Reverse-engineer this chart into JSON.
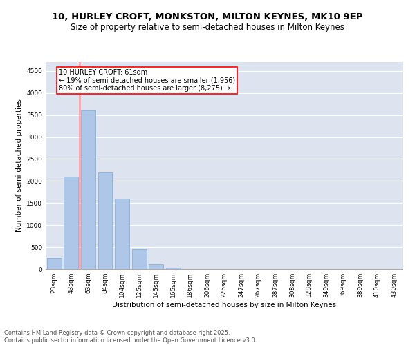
{
  "title_line1": "10, HURLEY CROFT, MONKSTON, MILTON KEYNES, MK10 9EP",
  "title_line2": "Size of property relative to semi-detached houses in Milton Keynes",
  "xlabel": "Distribution of semi-detached houses by size in Milton Keynes",
  "ylabel": "Number of semi-detached properties",
  "categories": [
    "23sqm",
    "43sqm",
    "63sqm",
    "84sqm",
    "104sqm",
    "125sqm",
    "145sqm",
    "165sqm",
    "186sqm",
    "206sqm",
    "226sqm",
    "247sqm",
    "267sqm",
    "287sqm",
    "308sqm",
    "328sqm",
    "349sqm",
    "369sqm",
    "389sqm",
    "410sqm",
    "430sqm"
  ],
  "values": [
    250,
    2100,
    3600,
    2200,
    1600,
    450,
    110,
    28,
    5,
    0,
    0,
    0,
    0,
    0,
    0,
    0,
    0,
    0,
    0,
    0,
    0
  ],
  "bar_color": "#aec6e8",
  "bar_edge_color": "#7aadd4",
  "vline_color": "red",
  "vline_x_idx": 1.5,
  "annotation_title": "10 HURLEY CROFT: 61sqm",
  "annotation_line1": "← 19% of semi-detached houses are smaller (1,956)",
  "annotation_line2": "80% of semi-detached houses are larger (8,275) →",
  "annotation_box_color": "red",
  "ylim": [
    0,
    4700
  ],
  "yticks": [
    0,
    500,
    1000,
    1500,
    2000,
    2500,
    3000,
    3500,
    4000,
    4500
  ],
  "background_color": "#dde4f0",
  "grid_color": "white",
  "footer_line1": "Contains HM Land Registry data © Crown copyright and database right 2025.",
  "footer_line2": "Contains public sector information licensed under the Open Government Licence v3.0.",
  "title_fontsize": 9.5,
  "subtitle_fontsize": 8.5,
  "axis_label_fontsize": 7.5,
  "tick_fontsize": 6.5,
  "annotation_fontsize": 7,
  "footer_fontsize": 6
}
